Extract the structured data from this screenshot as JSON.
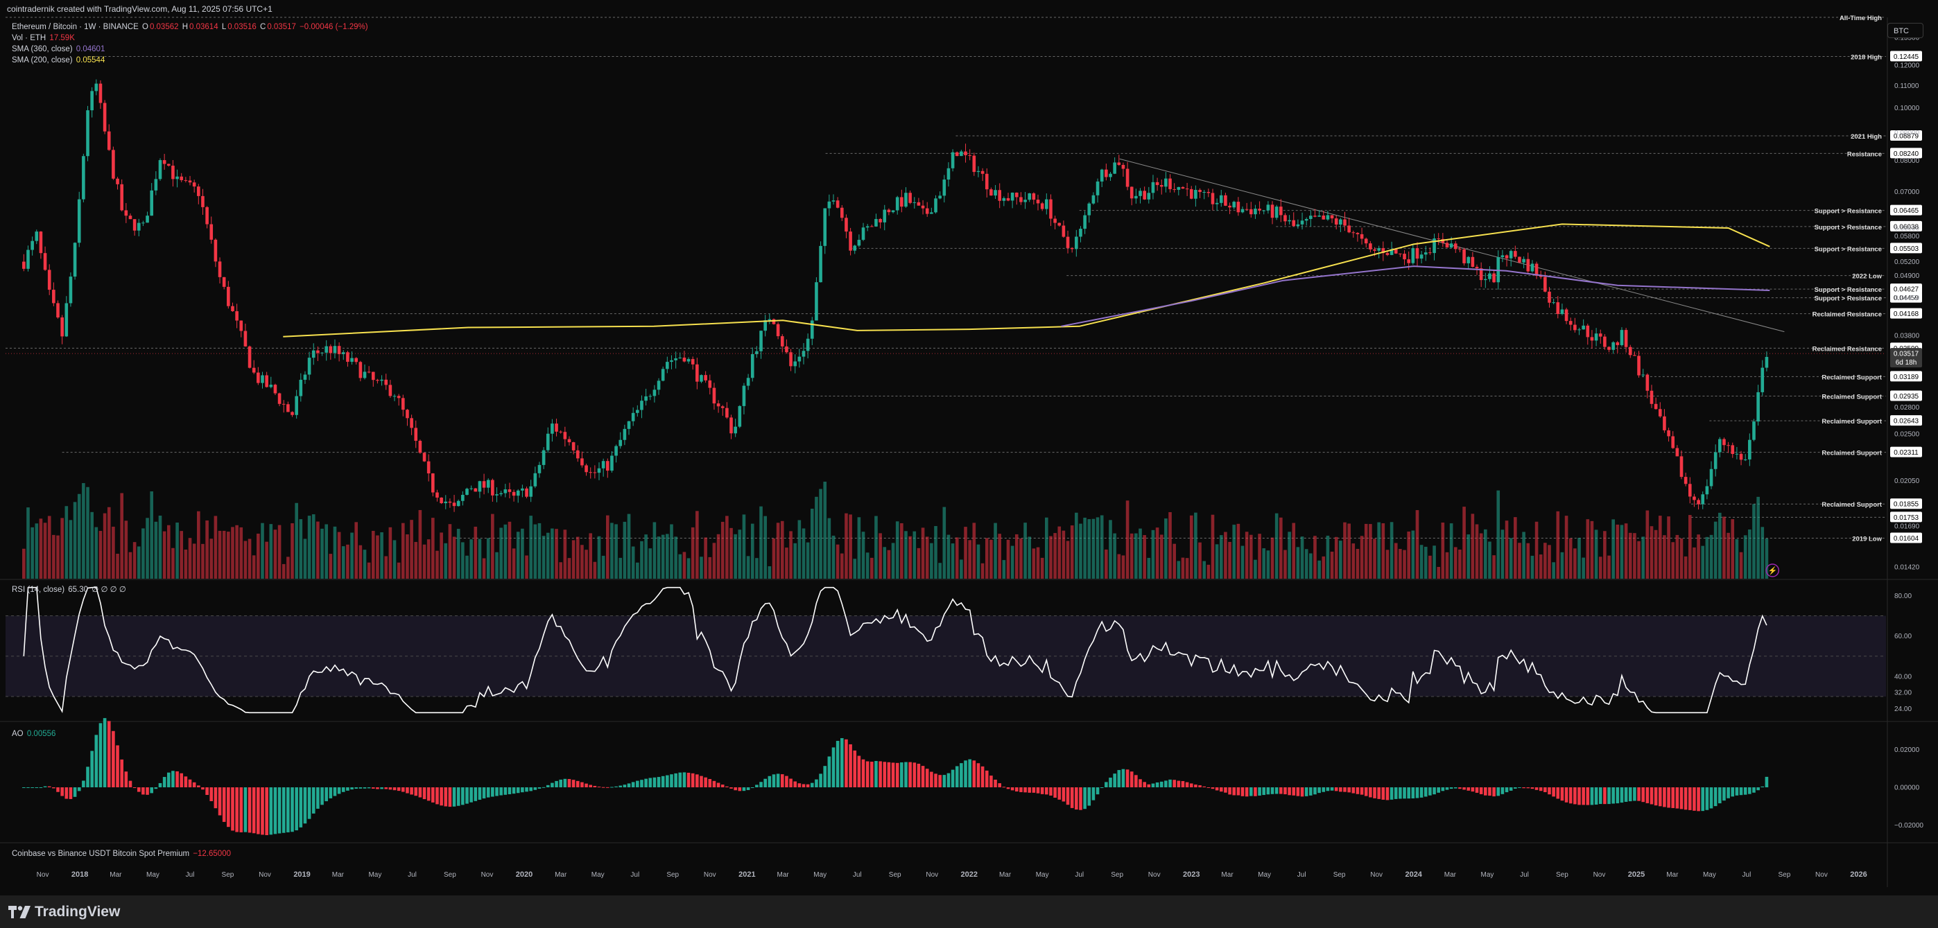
{
  "caption": "cointradernik created with TradingView.com, Aug 11, 2025 07:56 UTC+1",
  "footer": {
    "logo_text": "TradingView"
  },
  "header": {
    "currency_button": "BTC"
  },
  "legend": {
    "symbol": "Ethereum / Bitcoin · 1W · BINANCE",
    "o_label": "O",
    "o": "0.03562",
    "h_label": "H",
    "h": "0.03614",
    "l_label": "L",
    "l": "0.03516",
    "c_label": "C",
    "c": "0.03517",
    "change": "−0.00046 (−1.29%)",
    "vol_label": "Vol · ETH",
    "vol": "17.59K",
    "sma360_label": "SMA (360, close)",
    "sma360": "0.04601",
    "sma200_label": "SMA (200, close)",
    "sma200": "0.05544",
    "rsi_label": "RSI (14, close)",
    "rsi": "65.30",
    "rsi_extra": "∅ ∅ ∅ ∅",
    "ao_label": "AO",
    "ao": "0.00556",
    "premium_label": "Coinbase vs Binance USDT Bitcoin Spot Premium",
    "premium": "−12.65000"
  },
  "colors": {
    "up": "#22ab94",
    "down": "#f23645",
    "sma200": "#f7e14f",
    "sma360": "#9575cd",
    "rsi_line": "#ffffff",
    "rsi_band": "#1a1725",
    "background": "#0b0b0b",
    "level_line": "#6a6a6a"
  },
  "chart_data": [
    {
      "type": "candlestick",
      "title": "Ethereum / Bitcoin · 1W · BINANCE",
      "scale": "log",
      "ylim": [
        0.0135,
        0.147
      ],
      "x_range": [
        "2017-09-01",
        "2026-02-15"
      ],
      "y_tick_labels": [
        "0.13500",
        "0.12000",
        "0.11000",
        "0.10000",
        "0.09000",
        "0.08000",
        "0.07000",
        "0.06000",
        "0.05800",
        "0.05200",
        "0.04900",
        "0.04459",
        "0.03800",
        "0.02800",
        "0.02500",
        "0.02050",
        "0.01690",
        "0.01420"
      ],
      "price_path": [
        [
          "2017-10-01",
          0.052
        ],
        [
          "2017-10-22",
          0.058
        ],
        [
          "2017-11-12",
          0.045
        ],
        [
          "2017-12-03",
          0.038
        ],
        [
          "2017-12-24",
          0.055
        ],
        [
          "2018-01-14",
          0.1
        ],
        [
          "2018-01-28",
          0.11
        ],
        [
          "2018-02-15",
          0.085
        ],
        [
          "2018-03-15",
          0.062
        ],
        [
          "2018-04-15",
          0.06
        ],
        [
          "2018-05-15",
          0.083
        ],
        [
          "2018-06-10",
          0.073
        ],
        [
          "2018-07-15",
          0.07
        ],
        [
          "2018-08-20",
          0.048
        ],
        [
          "2018-09-15",
          0.04
        ],
        [
          "2018-10-15",
          0.032
        ],
        [
          "2018-11-15",
          0.03
        ],
        [
          "2018-12-15",
          0.027
        ],
        [
          "2019-01-15",
          0.035
        ],
        [
          "2019-02-15",
          0.036
        ],
        [
          "2019-03-20",
          0.034
        ],
        [
          "2019-05-01",
          0.031
        ],
        [
          "2019-06-01",
          0.03
        ],
        [
          "2019-07-01",
          0.025
        ],
        [
          "2019-08-01",
          0.02
        ],
        [
          "2019-09-10",
          0.018
        ],
        [
          "2019-10-01",
          0.02
        ],
        [
          "2019-11-01",
          0.02
        ],
        [
          "2019-12-15",
          0.019
        ],
        [
          "2020-01-15",
          0.02
        ],
        [
          "2020-02-15",
          0.026
        ],
        [
          "2020-03-20",
          0.024
        ],
        [
          "2020-04-20",
          0.021
        ],
        [
          "2020-05-20",
          0.022
        ],
        [
          "2020-06-20",
          0.026
        ],
        [
          "2020-07-20",
          0.029
        ],
        [
          "2020-08-20",
          0.034
        ],
        [
          "2020-09-20",
          0.035
        ],
        [
          "2020-10-20",
          0.031
        ],
        [
          "2020-11-20",
          0.028
        ],
        [
          "2020-12-10",
          0.025
        ],
        [
          "2021-01-10",
          0.035
        ],
        [
          "2021-02-10",
          0.042
        ],
        [
          "2021-03-15",
          0.033
        ],
        [
          "2021-04-15",
          0.038
        ],
        [
          "2021-05-10",
          0.065
        ],
        [
          "2021-05-25",
          0.07
        ],
        [
          "2021-06-20",
          0.056
        ],
        [
          "2021-07-20",
          0.06
        ],
        [
          "2021-08-20",
          0.065
        ],
        [
          "2021-09-20",
          0.068
        ],
        [
          "2021-10-20",
          0.063
        ],
        [
          "2021-11-20",
          0.072
        ],
        [
          "2021-12-10",
          0.084
        ],
        [
          "2022-01-10",
          0.078
        ],
        [
          "2022-02-10",
          0.07
        ],
        [
          "2022-03-10",
          0.068
        ],
        [
          "2022-04-10",
          0.068
        ],
        [
          "2022-05-10",
          0.066
        ],
        [
          "2022-06-10",
          0.055
        ],
        [
          "2022-07-01",
          0.058
        ],
        [
          "2022-08-01",
          0.075
        ],
        [
          "2022-09-05",
          0.08
        ],
        [
          "2022-09-25",
          0.069
        ],
        [
          "2022-10-20",
          0.07
        ],
        [
          "2022-11-20",
          0.073
        ],
        [
          "2022-12-20",
          0.071
        ],
        [
          "2023-01-20",
          0.068
        ],
        [
          "2023-02-20",
          0.067
        ],
        [
          "2023-03-20",
          0.065
        ],
        [
          "2023-04-20",
          0.065
        ],
        [
          "2023-05-20",
          0.064
        ],
        [
          "2023-06-20",
          0.06
        ],
        [
          "2023-07-20",
          0.062
        ],
        [
          "2023-08-20",
          0.062
        ],
        [
          "2023-09-20",
          0.06
        ],
        [
          "2023-10-20",
          0.054
        ],
        [
          "2023-11-10",
          0.055
        ],
        [
          "2023-12-20",
          0.053
        ],
        [
          "2024-01-20",
          0.055
        ],
        [
          "2024-02-20",
          0.057
        ],
        [
          "2024-03-10",
          0.055
        ],
        [
          "2024-04-10",
          0.05
        ],
        [
          "2024-05-10",
          0.048
        ],
        [
          "2024-05-25",
          0.054
        ],
        [
          "2024-06-20",
          0.053
        ],
        [
          "2024-07-20",
          0.05
        ],
        [
          "2024-08-20",
          0.043
        ],
        [
          "2024-09-20",
          0.04
        ],
        [
          "2024-10-20",
          0.038
        ],
        [
          "2024-11-20",
          0.036
        ],
        [
          "2024-12-10",
          0.038
        ],
        [
          "2025-01-10",
          0.032
        ],
        [
          "2025-02-10",
          0.026
        ],
        [
          "2025-03-10",
          0.022
        ],
        [
          "2025-04-01",
          0.019
        ],
        [
          "2025-04-20",
          0.019
        ],
        [
          "2025-05-15",
          0.024
        ],
        [
          "2025-06-01",
          0.024
        ],
        [
          "2025-06-25",
          0.022
        ],
        [
          "2025-07-10",
          0.025
        ],
        [
          "2025-07-25",
          0.032
        ],
        [
          "2025-08-08",
          0.0352
        ]
      ],
      "sma200": [
        [
          "2018-12-01",
          0.0378
        ],
        [
          "2019-10-01",
          0.0393
        ],
        [
          "2020-08-01",
          0.0395
        ],
        [
          "2021-03-01",
          0.0405
        ],
        [
          "2021-07-01",
          0.0388
        ],
        [
          "2022-01-01",
          0.039
        ],
        [
          "2022-07-01",
          0.0395
        ],
        [
          "2023-05-01",
          0.0475
        ],
        [
          "2024-01-01",
          0.056
        ],
        [
          "2024-09-01",
          0.061
        ],
        [
          "2025-06-01",
          0.06
        ],
        [
          "2025-08-08",
          0.05544
        ]
      ],
      "sma360": [
        [
          "2022-06-01",
          0.0395
        ],
        [
          "2023-01-01",
          0.044
        ],
        [
          "2023-06-01",
          0.048
        ],
        [
          "2024-01-01",
          0.051
        ],
        [
          "2024-06-01",
          0.05
        ],
        [
          "2024-12-01",
          0.047
        ],
        [
          "2025-08-08",
          0.04601
        ]
      ],
      "trendline": [
        [
          "2022-09-05",
          0.0805
        ],
        [
          "2025-09-01",
          0.0386
        ]
      ],
      "levels": [
        {
          "label": "All-Time High",
          "value": 0.147,
          "from": "2017-09-01",
          "box": ""
        },
        {
          "label": "2018 High",
          "value": 0.12445,
          "from": "2018-01-14",
          "box": "0.12445"
        },
        {
          "label": "2021 High",
          "value": 0.08879,
          "from": "2021-12-10",
          "box": "0.08879"
        },
        {
          "label": "Resistance",
          "value": 0.0824,
          "from": "2021-05-10",
          "box": "0.08240"
        },
        {
          "label": "Support > Resistance",
          "value": 0.06465,
          "from": "2022-07-01",
          "box": "0.06465"
        },
        {
          "label": "Support > Resistance",
          "value": 0.06038,
          "from": "2023-05-20",
          "box": "0.06038"
        },
        {
          "label": "Support > Resistance",
          "value": 0.05503,
          "from": "2021-06-20",
          "box": "0.05503"
        },
        {
          "label": "2022 Low",
          "value": 0.049,
          "from": "2022-06-10",
          "box": ""
        },
        {
          "label": "Support > Resistance",
          "value": 0.04627,
          "from": "2024-04-10",
          "box": "0.04627"
        },
        {
          "label": "Support > Resistance",
          "value": 0.04459,
          "from": "2024-05-10",
          "box": "0.04459"
        },
        {
          "label": "Reclaimed Resistance",
          "value": 0.04168,
          "from": "2019-01-15",
          "box": "0.04168"
        },
        {
          "label": "Reclaimed Resistance",
          "value": 0.03599,
          "from": "2017-09-01",
          "box": "0.03599"
        },
        {
          "label": "Reclaimed Support",
          "value": 0.03189,
          "from": "2025-01-10",
          "box": "0.03189"
        },
        {
          "label": "Reclaimed Support",
          "value": 0.02935,
          "from": "2021-03-15",
          "box": "0.02935"
        },
        {
          "label": "Reclaimed Support",
          "value": 0.02643,
          "from": "2025-05-01",
          "box": "0.02643"
        },
        {
          "label": "Reclaimed Support",
          "value": 0.02311,
          "from": "2017-12-03",
          "box": "0.02311"
        },
        {
          "label": "Reclaimed Support",
          "value": 0.01855,
          "from": "2025-04-01",
          "box": "0.01855"
        },
        {
          "label": "",
          "value": 0.01753,
          "from": "2025-04-01",
          "box": "0.01753"
        },
        {
          "label": "2019 Low",
          "value": 0.01604,
          "from": "2019-09-10",
          "box": "0.01604"
        }
      ],
      "last_price": {
        "value": "0.03517",
        "countdown": "6d 18h"
      }
    },
    {
      "type": "line",
      "title": "RSI (14, close)",
      "ylim": [
        18,
        88
      ],
      "y_tick_labels": [
        "80.00",
        "60.00",
        "40.00",
        "32.00",
        "24.00"
      ],
      "bands": [
        70,
        50,
        30
      ],
      "last": 65.3
    },
    {
      "type": "bar",
      "title": "AO",
      "y_tick_labels": [
        "0.02000",
        "0.00000",
        "−0.02000"
      ],
      "last": 0.00556
    }
  ],
  "x_axis_labels": [
    "Nov",
    "2018",
    "Mar",
    "May",
    "Jul",
    "Sep",
    "Nov",
    "2019",
    "Mar",
    "May",
    "Jul",
    "Sep",
    "Nov",
    "2020",
    "Mar",
    "May",
    "Jul",
    "Sep",
    "Nov",
    "2021",
    "Mar",
    "May",
    "Jul",
    "Sep",
    "Nov",
    "2022",
    "Mar",
    "May",
    "Jul",
    "Sep",
    "Nov",
    "2023",
    "Mar",
    "May",
    "Jul",
    "Sep",
    "Nov",
    "2024",
    "Mar",
    "May",
    "Jul",
    "Sep",
    "Nov",
    "2025",
    "Mar",
    "May",
    "Jul",
    "Sep",
    "Nov",
    "2026"
  ]
}
